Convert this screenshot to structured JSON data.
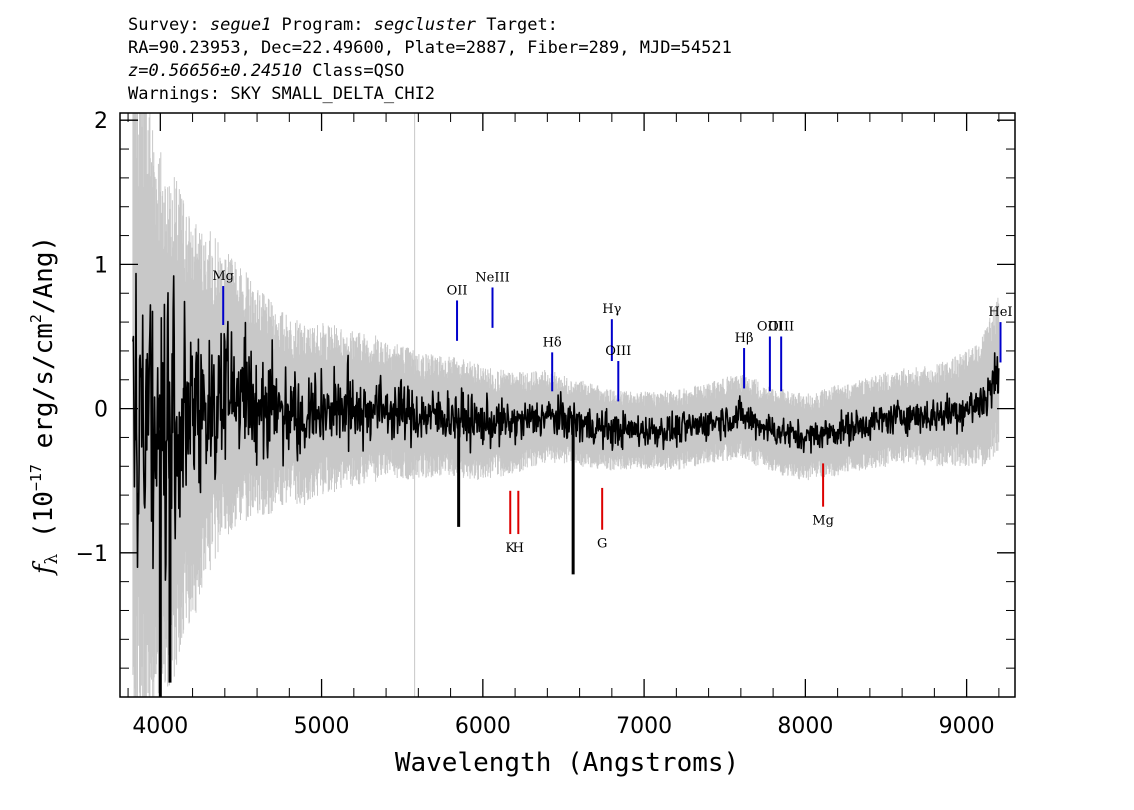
{
  "header": {
    "line1": {
      "a": "Survey: ",
      "survey": "segue1",
      "b": " Program: ",
      "program": "segcluster",
      "c": " Target:"
    },
    "line2": "RA=90.23953, Dec=22.49600, Plate=2887, Fiber=289, MJD=54521",
    "line3": {
      "z": "z=0.56656±0.24510",
      "cls": " Class=QSO"
    },
    "line4": "Warnings: SKY SMALL_DELTA_CHI2"
  },
  "chart_data": {
    "type": "line",
    "xlabel": "Wavelength (Angstroms)",
    "ylabel_main": "f",
    "ylabel_sub": "λ",
    "ylabel_pre": " (10",
    "ylabel_exp": "−17",
    "ylabel_post": " erg/s/cm",
    "ylabel_exp2": "2",
    "ylabel_end": "/Ang)",
    "xlim": [
      3750,
      9300
    ],
    "ylim": [
      -2.0,
      2.05
    ],
    "x_ticks": [
      4000,
      5000,
      6000,
      7000,
      8000,
      9000
    ],
    "x_tick_labels": [
      "4000",
      "5000",
      "6000",
      "7000",
      "8000",
      "9000"
    ],
    "y_ticks": [
      -1,
      0,
      1,
      2
    ],
    "y_tick_labels": [
      "−1",
      "0",
      "1",
      "2"
    ],
    "colors": {
      "flux": "#000000",
      "error": "#c8c8c8",
      "emission": "#0000cc",
      "absorption": "#dd0000"
    },
    "series": [
      {
        "role": "flux",
        "x": [
          3830,
          3900,
          3950,
          4000,
          4050,
          4100,
          4150,
          4200,
          4300,
          4400,
          4500,
          4600,
          4700,
          4800,
          4900,
          5000,
          5200,
          5400,
          5600,
          5800,
          6000,
          6200,
          6400,
          6600,
          6800,
          7000,
          7200,
          7400,
          7600,
          7800,
          8000,
          8200,
          8400,
          8600,
          8800,
          9000,
          9100,
          9200
        ],
        "y": [
          0.2,
          0.05,
          -0.1,
          -0.15,
          -0.2,
          -0.1,
          -0.05,
          -0.1,
          0.05,
          0.1,
          0.1,
          0.05,
          0.0,
          0.0,
          -0.05,
          0.0,
          0.0,
          0.0,
          -0.05,
          -0.05,
          -0.1,
          -0.1,
          -0.05,
          -0.1,
          -0.15,
          -0.15,
          -0.15,
          -0.1,
          -0.05,
          -0.15,
          -0.2,
          -0.15,
          -0.1,
          -0.05,
          -0.05,
          0.0,
          0.05,
          0.25
        ],
        "noise": [
          1.0,
          0.9,
          0.8,
          0.75,
          0.7,
          0.6,
          0.55,
          0.5,
          0.4,
          0.35,
          0.3,
          0.28,
          0.25,
          0.22,
          0.2,
          0.2,
          0.18,
          0.15,
          0.14,
          0.13,
          0.12,
          0.1,
          0.1,
          0.1,
          0.09,
          0.08,
          0.08,
          0.08,
          0.08,
          0.08,
          0.07,
          0.08,
          0.08,
          0.08,
          0.09,
          0.1,
          0.12,
          0.15
        ]
      },
      {
        "role": "error",
        "x": [
          3830,
          3900,
          3950,
          4000,
          4100,
          4200,
          4300,
          4400,
          4500,
          4600,
          4800,
          5000,
          5200,
          5400,
          5600,
          5800,
          6000,
          6200,
          6400,
          6600,
          6800,
          7000,
          7200,
          7400,
          7600,
          7800,
          8000,
          8200,
          8400,
          8600,
          8800,
          9000,
          9100,
          9200
        ],
        "y": [
          2.5,
          2.4,
          2.2,
          2.0,
          1.7,
          1.4,
          1.2,
          1.0,
          0.9,
          0.8,
          0.65,
          0.6,
          0.55,
          0.5,
          0.45,
          0.42,
          0.4,
          0.35,
          0.32,
          0.3,
          0.28,
          0.27,
          0.28,
          0.28,
          0.3,
          0.3,
          0.3,
          0.32,
          0.33,
          0.33,
          0.35,
          0.4,
          0.45,
          0.55
        ]
      }
    ],
    "spikes": [
      {
        "x": 5850,
        "y": -0.82
      },
      {
        "x": 6560,
        "y": -1.15
      },
      {
        "x": 4000,
        "y": -2.0
      },
      {
        "x": 4060,
        "y": -1.9
      }
    ],
    "emission_lines": [
      {
        "label": "Mg",
        "x": 4390,
        "y_top": 0.85,
        "y_bottom": 0.58
      },
      {
        "label": "OII",
        "x": 5840,
        "y_top": 0.75,
        "y_bottom": 0.47
      },
      {
        "label": "NeIII",
        "x": 6060,
        "y_top": 0.84,
        "y_bottom": 0.56
      },
      {
        "label": "Hδ",
        "x": 6430,
        "y_top": 0.39,
        "y_bottom": 0.12
      },
      {
        "label": "Hγ",
        "x": 6800,
        "y_top": 0.62,
        "y_bottom": 0.33
      },
      {
        "label": "OIII",
        "x": 6840,
        "y_top": 0.33,
        "y_bottom": 0.05
      },
      {
        "label": "Hβ",
        "x": 7620,
        "y_top": 0.42,
        "y_bottom": 0.14
      },
      {
        "label": "OIII",
        "x": 7780,
        "y_top": 0.5,
        "y_bottom": 0.12
      },
      {
        "label": "OIII",
        "x": 7850,
        "y_top": 0.5,
        "y_bottom": 0.12
      },
      {
        "label": "HeI",
        "x": 9210,
        "y_top": 0.6,
        "y_bottom": 0.32
      }
    ],
    "absorption_lines": [
      {
        "label": "K",
        "x": 6170,
        "y_top": -0.57,
        "y_bottom": -0.87
      },
      {
        "label": "H",
        "x": 6220,
        "y_top": -0.57,
        "y_bottom": -0.87
      },
      {
        "label": "G",
        "x": 6740,
        "y_top": -0.55,
        "y_bottom": -0.84
      },
      {
        "label": "Mg",
        "x": 8110,
        "y_top": -0.38,
        "y_bottom": -0.68
      }
    ]
  }
}
